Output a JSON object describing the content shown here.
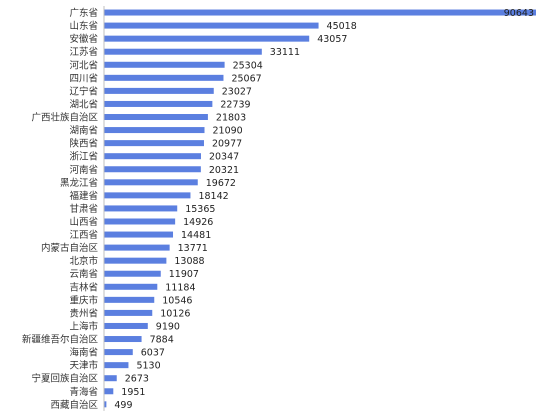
{
  "chart_data": {
    "type": "bar",
    "orientation": "horizontal",
    "bar_color": "#5b7fe0",
    "axis_color": "#bfbfbf",
    "grid": false,
    "xlim": [
      0,
      90643
    ],
    "categories": [
      "广东省",
      "山东省",
      "安徽省",
      "江苏省",
      "河北省",
      "四川省",
      "辽宁省",
      "湖北省",
      "广西壮族自治区",
      "湖南省",
      "陕西省",
      "浙江省",
      "河南省",
      "黑龙江省",
      "福建省",
      "甘肃省",
      "山西省",
      "江西省",
      "内蒙古自治区",
      "北京市",
      "云南省",
      "吉林省",
      "重庆市",
      "贵州省",
      "上海市",
      "新疆维吾尔自治区",
      "海南省",
      "天津市",
      "宁夏回族自治区",
      "青海省",
      "西藏自治区"
    ],
    "values": [
      90643,
      45018,
      43057,
      33111,
      25304,
      25067,
      23027,
      22739,
      21803,
      21090,
      20977,
      20347,
      20321,
      19672,
      18142,
      15365,
      14926,
      14481,
      13771,
      13088,
      11907,
      11184,
      10546,
      10126,
      9190,
      7884,
      6037,
      5130,
      2673,
      1951,
      499
    ]
  }
}
